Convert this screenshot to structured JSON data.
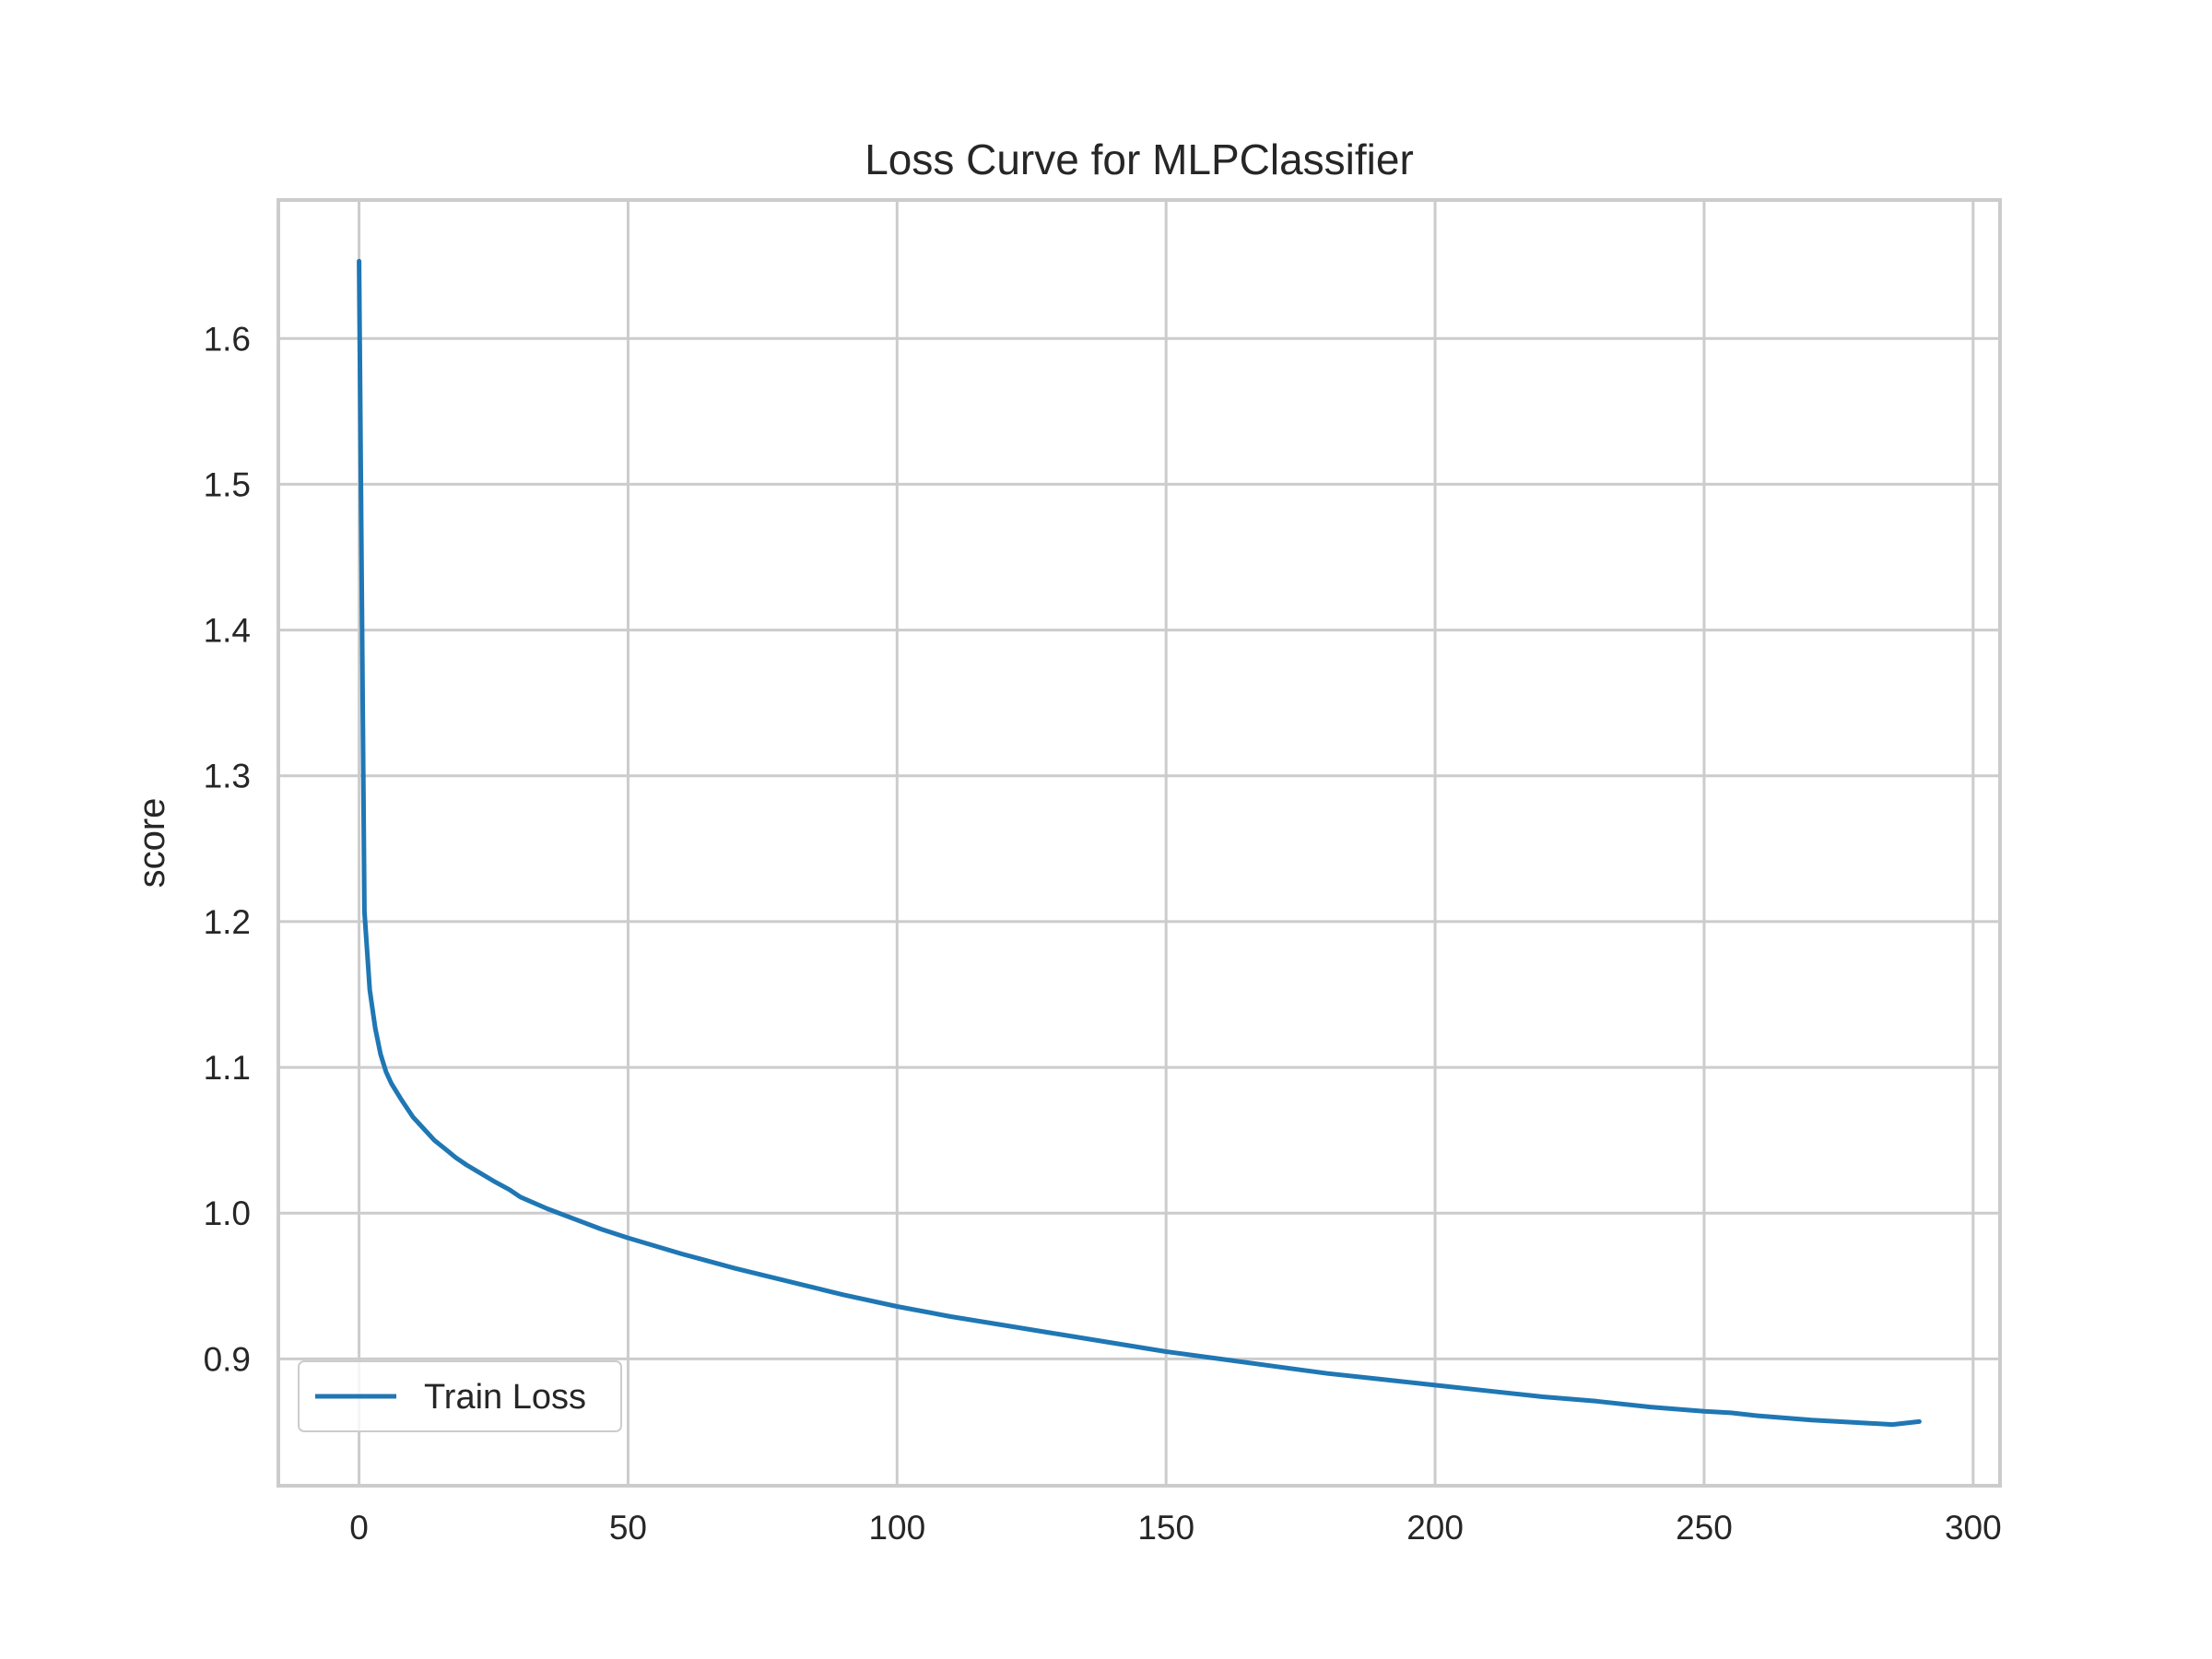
{
  "chart_data": {
    "type": "line",
    "title": "Loss Curve for MLPClassifier",
    "xlabel": "",
    "ylabel": "score",
    "xlim": [
      -15,
      305
    ],
    "ylim": [
      0.813,
      1.695
    ],
    "xticks": [
      0,
      50,
      100,
      150,
      200,
      250,
      300
    ],
    "yticks": [
      0.9,
      1.0,
      1.1,
      1.2,
      1.3,
      1.4,
      1.5,
      1.6
    ],
    "xtick_labels": [
      "0",
      "50",
      "100",
      "150",
      "200",
      "250",
      "300"
    ],
    "ytick_labels": [
      "0.9",
      "1.0",
      "1.1",
      "1.2",
      "1.3",
      "1.4",
      "1.5",
      "1.6"
    ],
    "grid": true,
    "legend_position": "lower-left",
    "colors": {
      "series": "#1f77b4",
      "grid": "#cccccc",
      "frame": "#cccccc",
      "text": "#262626"
    },
    "series": [
      {
        "name": "Train Loss",
        "x": [
          0,
          1,
          2,
          3,
          4,
          5,
          6,
          8,
          10,
          12,
          14,
          16,
          18,
          20,
          25,
          28,
          30,
          35,
          40,
          45,
          50,
          60,
          70,
          80,
          90,
          100,
          110,
          120,
          130,
          140,
          150,
          160,
          170,
          180,
          190,
          200,
          210,
          220,
          230,
          240,
          250,
          255,
          260,
          270,
          280,
          285,
          290
        ],
        "y": [
          1.653,
          1.207,
          1.153,
          1.127,
          1.109,
          1.097,
          1.089,
          1.077,
          1.066,
          1.058,
          1.05,
          1.044,
          1.038,
          1.033,
          1.022,
          1.016,
          1.011,
          1.003,
          0.996,
          0.989,
          0.983,
          0.972,
          0.962,
          0.953,
          0.944,
          0.936,
          0.929,
          0.923,
          0.917,
          0.911,
          0.905,
          0.9,
          0.895,
          0.89,
          0.886,
          0.882,
          0.878,
          0.874,
          0.871,
          0.867,
          0.864,
          0.863,
          0.861,
          0.858,
          0.856,
          0.855,
          0.857
        ]
      }
    ]
  }
}
